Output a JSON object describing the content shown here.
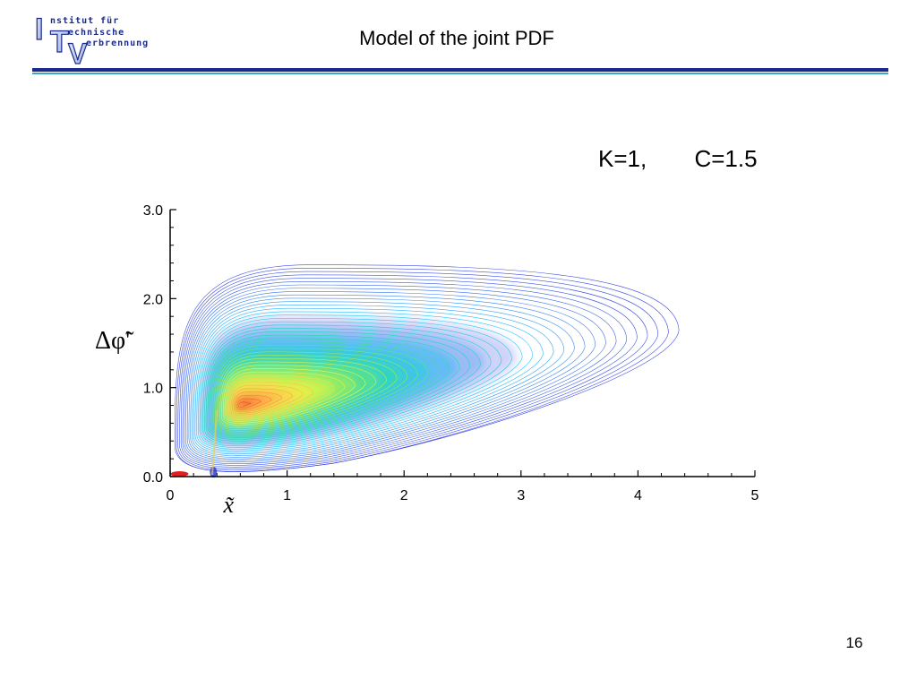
{
  "header": {
    "logo": {
      "big_letters": [
        "I",
        "T",
        "V"
      ],
      "lines": [
        "nstitut für",
        "echnische",
        "erbrennung"
      ]
    },
    "title": "Model of the joint PDF"
  },
  "annotation": {
    "k": "K=1,",
    "c": "C=1.5"
  },
  "chart_data": {
    "type": "contour",
    "xlabel": "x̃",
    "ylabel": "Δφ̃'",
    "xlim": [
      0,
      5
    ],
    "ylim": [
      0,
      3
    ],
    "x_ticks": [
      "0",
      "1",
      "2",
      "3",
      "4",
      "5"
    ],
    "y_ticks": [
      "0.0",
      "1.0",
      "2.0",
      "3.0"
    ],
    "peak": {
      "x": 0.6,
      "y": 0.8
    },
    "outer_contour": {
      "x_max": 4.35,
      "y_max": 2.38
    },
    "colormap": [
      "#1f2ee0",
      "#00bfff",
      "#00e6a0",
      "#a8f040",
      "#ffff40",
      "#ffc050",
      "#ff8040",
      "#e02020"
    ],
    "grid": false,
    "legend": "none"
  },
  "footer": {
    "page_number": "16"
  }
}
